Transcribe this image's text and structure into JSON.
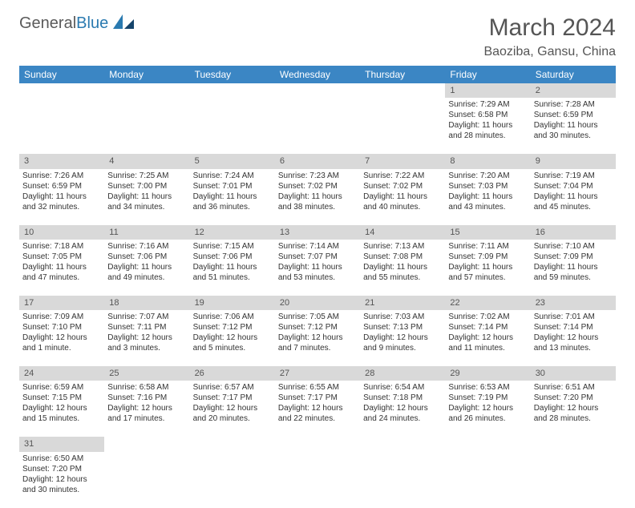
{
  "logo": {
    "text1": "General",
    "text2": "Blue",
    "color1": "#5a5a5a",
    "color2": "#2a7ab0"
  },
  "title": "March 2024",
  "location": "Baoziba, Gansu, China",
  "dayHeaders": [
    "Sunday",
    "Monday",
    "Tuesday",
    "Wednesday",
    "Thursday",
    "Friday",
    "Saturday"
  ],
  "colors": {
    "headerBg": "#3b86c4",
    "headerText": "#ffffff",
    "daynumBg": "#d9d9d9",
    "bodyText": "#333333"
  },
  "weeks": [
    [
      null,
      null,
      null,
      null,
      null,
      {
        "num": "1",
        "sunrise": "Sunrise: 7:29 AM",
        "sunset": "Sunset: 6:58 PM",
        "daylight": "Daylight: 11 hours and 28 minutes."
      },
      {
        "num": "2",
        "sunrise": "Sunrise: 7:28 AM",
        "sunset": "Sunset: 6:59 PM",
        "daylight": "Daylight: 11 hours and 30 minutes."
      }
    ],
    [
      {
        "num": "3",
        "sunrise": "Sunrise: 7:26 AM",
        "sunset": "Sunset: 6:59 PM",
        "daylight": "Daylight: 11 hours and 32 minutes."
      },
      {
        "num": "4",
        "sunrise": "Sunrise: 7:25 AM",
        "sunset": "Sunset: 7:00 PM",
        "daylight": "Daylight: 11 hours and 34 minutes."
      },
      {
        "num": "5",
        "sunrise": "Sunrise: 7:24 AM",
        "sunset": "Sunset: 7:01 PM",
        "daylight": "Daylight: 11 hours and 36 minutes."
      },
      {
        "num": "6",
        "sunrise": "Sunrise: 7:23 AM",
        "sunset": "Sunset: 7:02 PM",
        "daylight": "Daylight: 11 hours and 38 minutes."
      },
      {
        "num": "7",
        "sunrise": "Sunrise: 7:22 AM",
        "sunset": "Sunset: 7:02 PM",
        "daylight": "Daylight: 11 hours and 40 minutes."
      },
      {
        "num": "8",
        "sunrise": "Sunrise: 7:20 AM",
        "sunset": "Sunset: 7:03 PM",
        "daylight": "Daylight: 11 hours and 43 minutes."
      },
      {
        "num": "9",
        "sunrise": "Sunrise: 7:19 AM",
        "sunset": "Sunset: 7:04 PM",
        "daylight": "Daylight: 11 hours and 45 minutes."
      }
    ],
    [
      {
        "num": "10",
        "sunrise": "Sunrise: 7:18 AM",
        "sunset": "Sunset: 7:05 PM",
        "daylight": "Daylight: 11 hours and 47 minutes."
      },
      {
        "num": "11",
        "sunrise": "Sunrise: 7:16 AM",
        "sunset": "Sunset: 7:06 PM",
        "daylight": "Daylight: 11 hours and 49 minutes."
      },
      {
        "num": "12",
        "sunrise": "Sunrise: 7:15 AM",
        "sunset": "Sunset: 7:06 PM",
        "daylight": "Daylight: 11 hours and 51 minutes."
      },
      {
        "num": "13",
        "sunrise": "Sunrise: 7:14 AM",
        "sunset": "Sunset: 7:07 PM",
        "daylight": "Daylight: 11 hours and 53 minutes."
      },
      {
        "num": "14",
        "sunrise": "Sunrise: 7:13 AM",
        "sunset": "Sunset: 7:08 PM",
        "daylight": "Daylight: 11 hours and 55 minutes."
      },
      {
        "num": "15",
        "sunrise": "Sunrise: 7:11 AM",
        "sunset": "Sunset: 7:09 PM",
        "daylight": "Daylight: 11 hours and 57 minutes."
      },
      {
        "num": "16",
        "sunrise": "Sunrise: 7:10 AM",
        "sunset": "Sunset: 7:09 PM",
        "daylight": "Daylight: 11 hours and 59 minutes."
      }
    ],
    [
      {
        "num": "17",
        "sunrise": "Sunrise: 7:09 AM",
        "sunset": "Sunset: 7:10 PM",
        "daylight": "Daylight: 12 hours and 1 minute."
      },
      {
        "num": "18",
        "sunrise": "Sunrise: 7:07 AM",
        "sunset": "Sunset: 7:11 PM",
        "daylight": "Daylight: 12 hours and 3 minutes."
      },
      {
        "num": "19",
        "sunrise": "Sunrise: 7:06 AM",
        "sunset": "Sunset: 7:12 PM",
        "daylight": "Daylight: 12 hours and 5 minutes."
      },
      {
        "num": "20",
        "sunrise": "Sunrise: 7:05 AM",
        "sunset": "Sunset: 7:12 PM",
        "daylight": "Daylight: 12 hours and 7 minutes."
      },
      {
        "num": "21",
        "sunrise": "Sunrise: 7:03 AM",
        "sunset": "Sunset: 7:13 PM",
        "daylight": "Daylight: 12 hours and 9 minutes."
      },
      {
        "num": "22",
        "sunrise": "Sunrise: 7:02 AM",
        "sunset": "Sunset: 7:14 PM",
        "daylight": "Daylight: 12 hours and 11 minutes."
      },
      {
        "num": "23",
        "sunrise": "Sunrise: 7:01 AM",
        "sunset": "Sunset: 7:14 PM",
        "daylight": "Daylight: 12 hours and 13 minutes."
      }
    ],
    [
      {
        "num": "24",
        "sunrise": "Sunrise: 6:59 AM",
        "sunset": "Sunset: 7:15 PM",
        "daylight": "Daylight: 12 hours and 15 minutes."
      },
      {
        "num": "25",
        "sunrise": "Sunrise: 6:58 AM",
        "sunset": "Sunset: 7:16 PM",
        "daylight": "Daylight: 12 hours and 17 minutes."
      },
      {
        "num": "26",
        "sunrise": "Sunrise: 6:57 AM",
        "sunset": "Sunset: 7:17 PM",
        "daylight": "Daylight: 12 hours and 20 minutes."
      },
      {
        "num": "27",
        "sunrise": "Sunrise: 6:55 AM",
        "sunset": "Sunset: 7:17 PM",
        "daylight": "Daylight: 12 hours and 22 minutes."
      },
      {
        "num": "28",
        "sunrise": "Sunrise: 6:54 AM",
        "sunset": "Sunset: 7:18 PM",
        "daylight": "Daylight: 12 hours and 24 minutes."
      },
      {
        "num": "29",
        "sunrise": "Sunrise: 6:53 AM",
        "sunset": "Sunset: 7:19 PM",
        "daylight": "Daylight: 12 hours and 26 minutes."
      },
      {
        "num": "30",
        "sunrise": "Sunrise: 6:51 AM",
        "sunset": "Sunset: 7:20 PM",
        "daylight": "Daylight: 12 hours and 28 minutes."
      }
    ],
    [
      {
        "num": "31",
        "sunrise": "Sunrise: 6:50 AM",
        "sunset": "Sunset: 7:20 PM",
        "daylight": "Daylight: 12 hours and 30 minutes."
      },
      null,
      null,
      null,
      null,
      null,
      null
    ]
  ]
}
